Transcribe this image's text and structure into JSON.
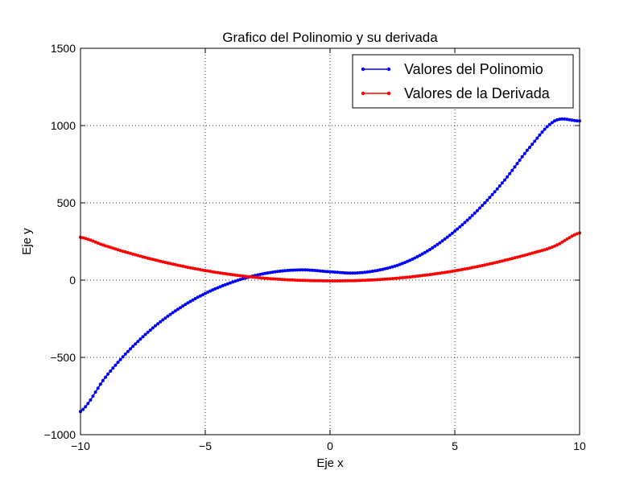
{
  "chart_data": {
    "type": "line",
    "title": "Grafico del Polinomio y su derivada",
    "xlabel": "Eje x",
    "ylabel": "Eje y",
    "xlim": [
      -10,
      10
    ],
    "ylim": [
      -1000,
      1500
    ],
    "xticks": [
      -10,
      -5,
      0,
      5,
      10
    ],
    "xtick_labels": [
      "−10",
      "−5",
      "0",
      "5",
      "10"
    ],
    "yticks": [
      -1000,
      -500,
      0,
      500,
      1000,
      1500
    ],
    "ytick_labels": [
      "−1000",
      "−500",
      "0",
      "500",
      "1000",
      "1500"
    ],
    "grid": true,
    "legend_position": "top-right",
    "series": [
      {
        "name": "Valores del Polinomio",
        "color": "#0000ff",
        "marker": "dot",
        "x": [
          -10,
          -9,
          -8,
          -7,
          -6,
          -5,
          -4,
          -3,
          -2,
          -1,
          0,
          1,
          2,
          3,
          4,
          5,
          6,
          7,
          8,
          9,
          10
        ],
        "y": [
          -850,
          -628,
          -445,
          -296,
          -178,
          -86,
          -18,
          30,
          58,
          66,
          54,
          46,
          66,
          114,
          198,
          317,
          466,
          648,
          859,
          1030,
          1030
        ]
      },
      {
        "name": "Valores de la Derivada",
        "color": "#ff0000",
        "marker": "dot",
        "x": [
          -10,
          -9,
          -8,
          -7,
          -6,
          -5,
          -4,
          -3,
          -2,
          -1,
          0,
          1,
          2,
          3,
          4,
          5,
          6,
          7,
          8,
          9,
          10
        ],
        "y": [
          277,
          222,
          173,
          130,
          93,
          62,
          37,
          18,
          5,
          -2,
          -5,
          -3,
          4,
          17,
          36,
          60,
          91,
          128,
          170,
          220,
          305
        ]
      }
    ]
  }
}
